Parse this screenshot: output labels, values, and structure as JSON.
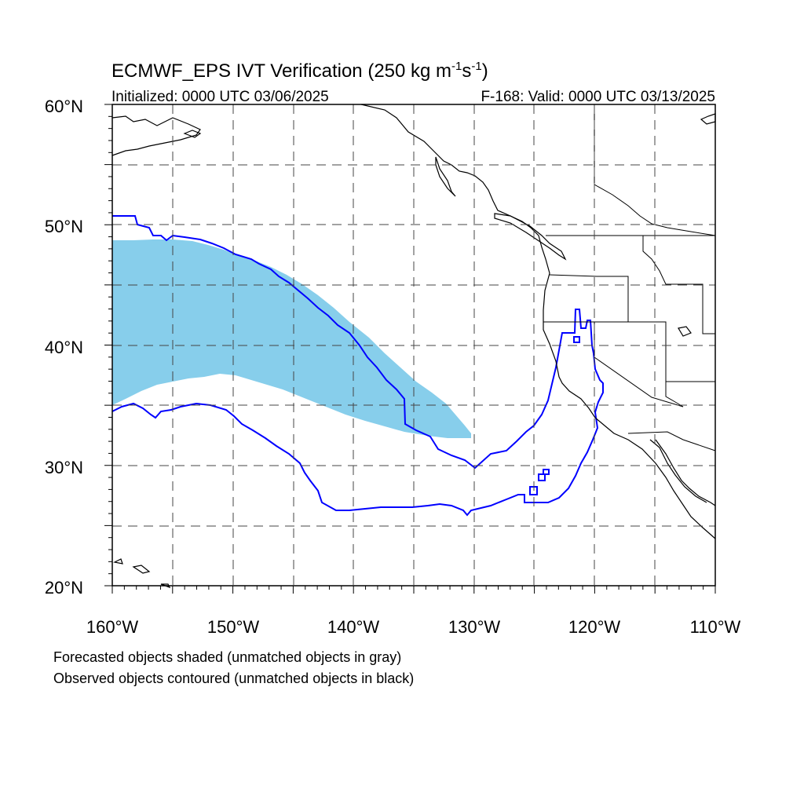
{
  "title": {
    "main": "ECMWF_EPS IVT Verification (250 kg m",
    "sup1": "-1",
    "mid": "s",
    "sup2": "-1",
    "end": ")"
  },
  "initialized": "Initialized: 0000 UTC 03/06/2025",
  "valid": "F-168: Valid: 0000 UTC 03/13/2025",
  "lat_labels": [
    "60°N",
    "50°N",
    "40°N",
    "30°N",
    "20°N"
  ],
  "lon_labels": [
    "160°W",
    "150°W",
    "140°W",
    "130°W",
    "120°W",
    "110°W"
  ],
  "footer": {
    "line1": "Forecasted objects shaded (unmatched objects in gray)",
    "line2": "Observed objects contoured (unmatched objects in black)"
  },
  "colors": {
    "forecast_fill": "#87ceeb",
    "observed_contour": "#0000ff",
    "coastline": "#000000",
    "grid": "#444444"
  },
  "map": {
    "projection": "cylindrical equidistant",
    "lon_range": [
      -160,
      -110
    ],
    "lat_range": [
      20,
      60
    ],
    "grid_lines": "dashed, every 5 degrees"
  }
}
